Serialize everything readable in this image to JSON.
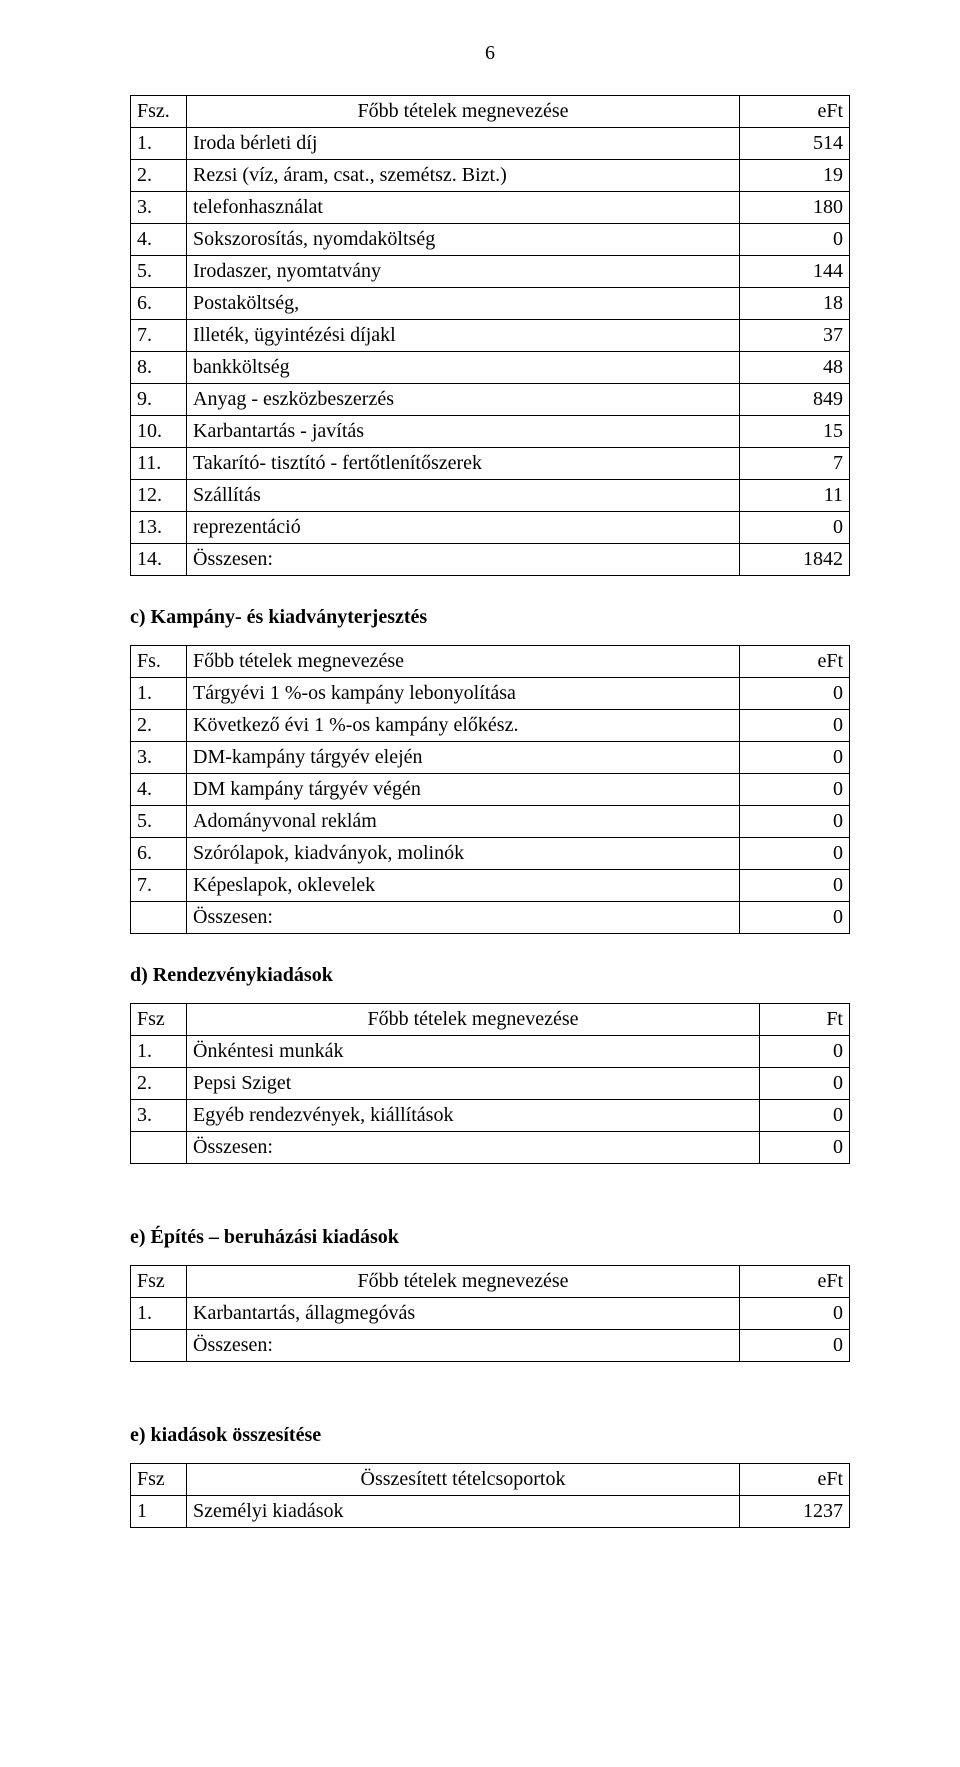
{
  "page_number": "6",
  "headers": {
    "fsz_dot": "Fsz.",
    "fsz": "Fsz",
    "fs_dot": "Fs.",
    "fobb": "Főbb tételek megnevezése",
    "eft": "eFt",
    "ft": "Ft",
    "osszesitett": "Összesített tételcsoportok"
  },
  "section_c_title": "c) Kampány- és kiadványterjesztés",
  "section_d_title": "d) Rendezvénykiadások",
  "section_e_title": "e) Építés – beruházási kiadások",
  "section_e2_title": "e) kiadások összesítése",
  "table_b": {
    "rows": [
      {
        "n": "1.",
        "label": "Iroda bérleti díj",
        "val": "514"
      },
      {
        "n": "2.",
        "label": "Rezsi (víz, áram, csat., szemétsz. Bizt.)",
        "val": "19"
      },
      {
        "n": "3.",
        "label": "telefonhasználat",
        "val": "180"
      },
      {
        "n": "4.",
        "label": "Sokszorosítás, nyomdaköltség",
        "val": "0"
      },
      {
        "n": "5.",
        "label": "Irodaszer, nyomtatvány",
        "val": "144"
      },
      {
        "n": "6.",
        "label": "Postaköltség,",
        "val": "18"
      },
      {
        "n": "7.",
        "label": "Illeték, ügyintézési díjakl",
        "val": "37"
      },
      {
        "n": "8.",
        "label": "bankköltség",
        "val": "48"
      },
      {
        "n": "9.",
        "label": "Anyag - eszközbeszerzés",
        "val": "849"
      },
      {
        "n": "10.",
        "label": "Karbantartás - javítás",
        "val": "15"
      },
      {
        "n": "11.",
        "label": "Takarító- tisztító - fertőtlenítőszerek",
        "val": "7"
      },
      {
        "n": "12.",
        "label": "Szállítás",
        "val": "11"
      },
      {
        "n": "13.",
        "label": "reprezentáció",
        "val": "0"
      },
      {
        "n": "14.",
        "label": "Összesen:",
        "val": "1842"
      }
    ]
  },
  "table_c": {
    "rows": [
      {
        "n": "1.",
        "label": "Tárgyévi 1 %-os kampány lebonyolítása",
        "val": "0"
      },
      {
        "n": "2.",
        "label": "Következő évi 1 %-os kampány előkész.",
        "val": "0"
      },
      {
        "n": "3.",
        "label": "DM-kampány tárgyév elején",
        "val": "0"
      },
      {
        "n": "4.",
        "label": "DM kampány tárgyév végén",
        "val": "0"
      },
      {
        "n": "5.",
        "label": "Adományvonal reklám",
        "val": "0"
      },
      {
        "n": "6.",
        "label": "Szórólapok, kiadványok, molinók",
        "val": "0"
      },
      {
        "n": "7.",
        "label": "Képeslapok, oklevelek",
        "val": "0"
      },
      {
        "n": "",
        "label": "Összesen:",
        "val": "0"
      }
    ]
  },
  "table_d": {
    "rows": [
      {
        "n": "1.",
        "label": "Önkéntesi munkák",
        "val": "0"
      },
      {
        "n": "2.",
        "label": "Pepsi Sziget",
        "val": "0"
      },
      {
        "n": "3.",
        "label": "Egyéb rendezvények, kiállítások",
        "val": "0"
      },
      {
        "n": "",
        "label": "Összesen:",
        "val": "0"
      }
    ]
  },
  "table_e": {
    "rows": [
      {
        "n": "1.",
        "label": "Karbantartás, állagmegóvás",
        "val": "0"
      },
      {
        "n": "",
        "label": "Összesen:",
        "val": "0"
      }
    ]
  },
  "table_e2": {
    "rows": [
      {
        "n": "1",
        "label": "Személyi kiadások",
        "val": "1237"
      }
    ]
  }
}
